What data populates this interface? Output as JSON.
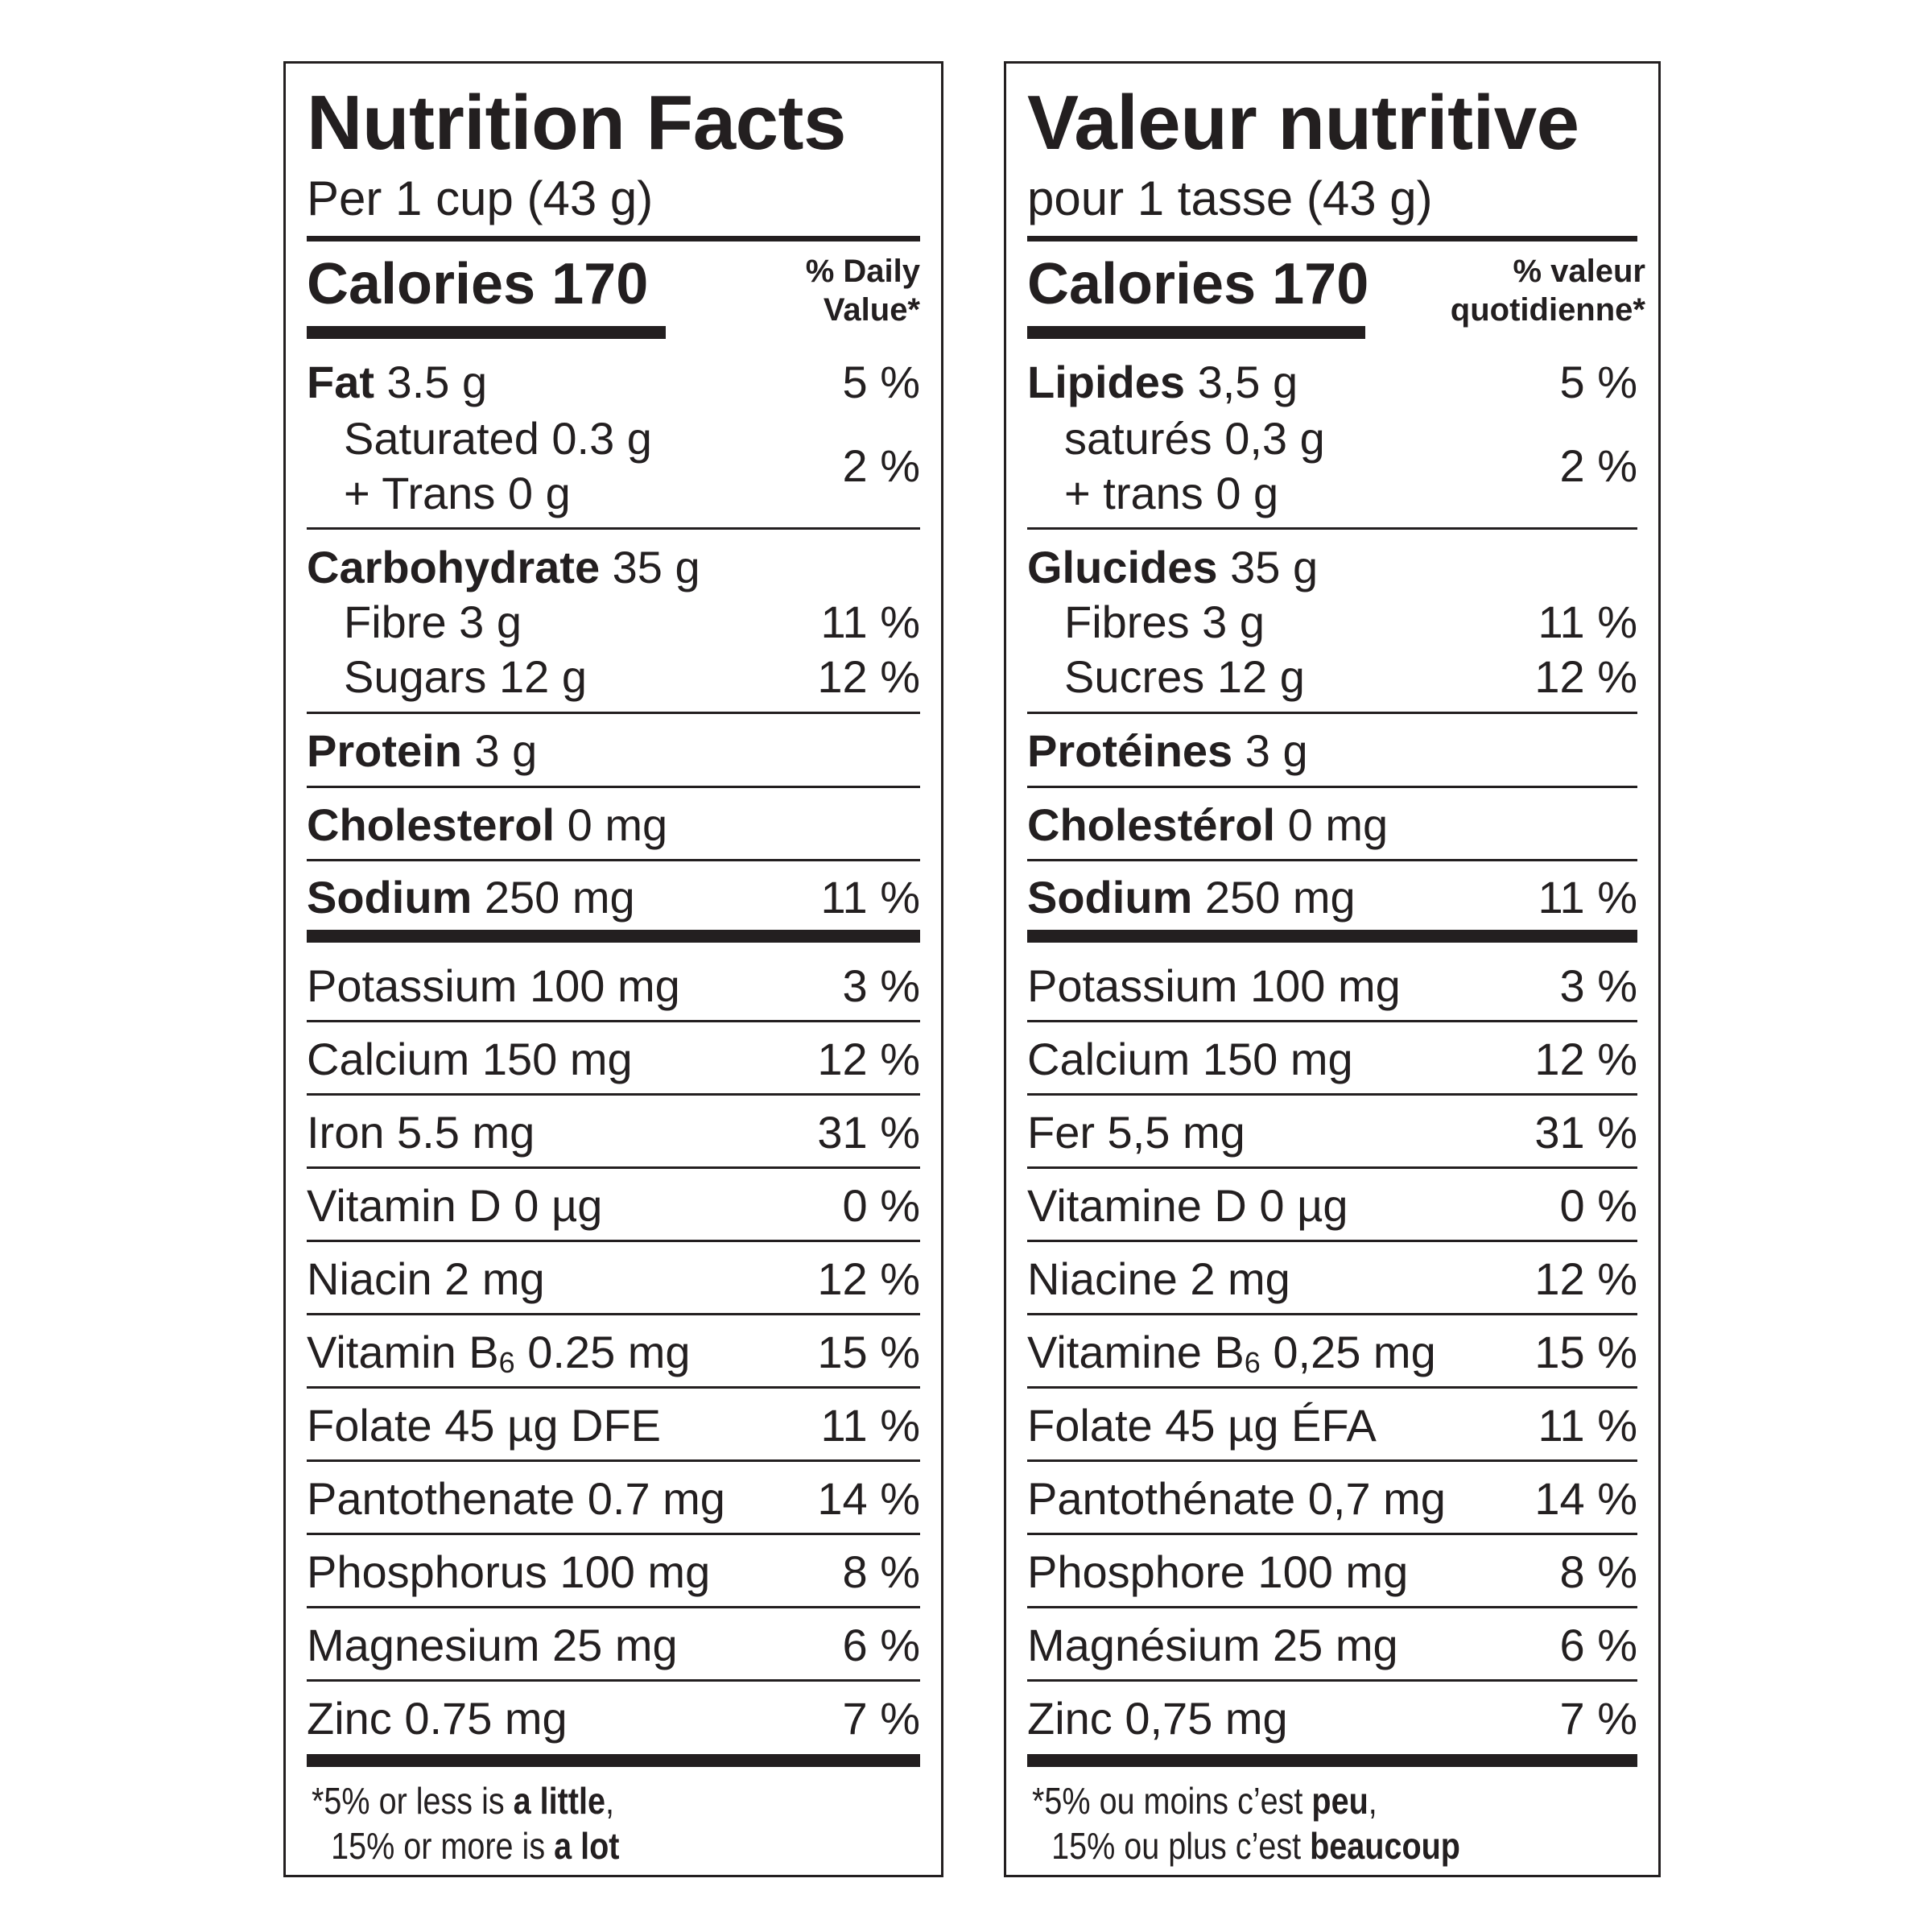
{
  "en": {
    "title": "Nutrition Facts",
    "serving": "Per 1 cup (43 g)",
    "calories_label": "Calories 170",
    "dv_line1": "% Daily",
    "dv_line2": "Value*",
    "fat_label": "Fat",
    "fat_amount": " 3.5 g",
    "fat_pct": "5 %",
    "saturated": "Saturated 0.3 g",
    "trans": "+ Trans 0 g",
    "sat_trans_pct": "2 %",
    "carb_label": "Carbohydrate",
    "carb_amount": " 35 g",
    "fibre": "Fibre 3 g",
    "fibre_pct": "11 %",
    "sugars": "Sugars 12 g",
    "sugars_pct": "12 %",
    "protein_label": "Protein",
    "protein_amount": " 3 g",
    "cholesterol_label": "Cholesterol",
    "cholesterol_amount": " 0 mg",
    "sodium_label": "Sodium",
    "sodium_amount": " 250 mg",
    "sodium_pct": "11 %",
    "potassium": "Potassium 100 mg",
    "potassium_pct": "3 %",
    "calcium": "Calcium 150 mg",
    "calcium_pct": "12 %",
    "iron": "Iron 5.5 mg",
    "iron_pct": "31 %",
    "vitd": "Vitamin D 0 µg",
    "vitd_pct": "0 %",
    "niacin": "Niacin 2 mg",
    "niacin_pct": "12 %",
    "b6_pre": "Vitamin B",
    "b6_sub": "6",
    "b6_post": " 0.25 mg",
    "b6_pct": "15 %",
    "folate": "Folate 45 µg DFE",
    "folate_pct": "11 %",
    "panto": "Pantothenate 0.7 mg",
    "panto_pct": "14 %",
    "phos": "Phosphorus 100 mg",
    "phos_pct": "8 %",
    "mag": "Magnesium 25 mg",
    "mag_pct": "6 %",
    "zinc": "Zinc 0.75 mg",
    "zinc_pct": "7 %",
    "fn1_pre": "*5% or less is ",
    "fn1_bold": "a little",
    "fn1_post": ",",
    "fn2_pre": "15% or more is ",
    "fn2_bold": "a lot"
  },
  "fr": {
    "title": "Valeur nutritive",
    "serving": "pour 1 tasse (43 g)",
    "calories_label": "Calories 170",
    "dv_line1": "% valeur",
    "dv_line2": "quotidienne*",
    "fat_label": "Lipides",
    "fat_amount": " 3,5 g",
    "fat_pct": "5 %",
    "saturated": "saturés 0,3 g",
    "trans": "+ trans 0 g",
    "sat_trans_pct": "2 %",
    "carb_label": "Glucides",
    "carb_amount": " 35 g",
    "fibre": "Fibres 3 g",
    "fibre_pct": "11 %",
    "sugars": "Sucres 12 g",
    "sugars_pct": "12 %",
    "protein_label": "Protéines",
    "protein_amount": " 3 g",
    "cholesterol_label": "Cholestérol",
    "cholesterol_amount": " 0 mg",
    "sodium_label": "Sodium",
    "sodium_amount": " 250 mg",
    "sodium_pct": "11 %",
    "potassium": "Potassium 100 mg",
    "potassium_pct": "3 %",
    "calcium": "Calcium 150 mg",
    "calcium_pct": "12 %",
    "iron": "Fer 5,5 mg",
    "iron_pct": "31 %",
    "vitd": "Vitamine D 0 µg",
    "vitd_pct": "0 %",
    "niacin": "Niacine 2 mg",
    "niacin_pct": "12 %",
    "b6_pre": "Vitamine B",
    "b6_sub": "6",
    "b6_post": " 0,25 mg",
    "b6_pct": "15 %",
    "folate": "Folate 45 µg ÉFA",
    "folate_pct": "11 %",
    "panto": "Pantothénate 0,7 mg",
    "panto_pct": "14 %",
    "phos": "Phosphore 100 mg",
    "phos_pct": "8 %",
    "mag": "Magnésium 25 mg",
    "mag_pct": "6 %",
    "zinc": "Zinc 0,75 mg",
    "zinc_pct": "7 %",
    "fn1_pre": "*5% ou moins c’est ",
    "fn1_bold": "peu",
    "fn1_post": ",",
    "fn2_pre": "15% ou plus c’est ",
    "fn2_bold": "beaucoup"
  }
}
